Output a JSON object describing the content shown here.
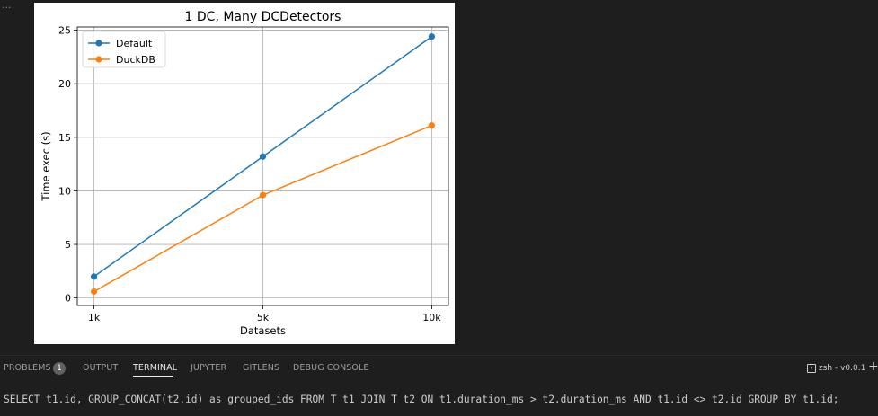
{
  "output": {
    "ellipsis": "..."
  },
  "chart_data": {
    "type": "line",
    "title": "1 DC, Many DCDetectors",
    "xlabel": "Datasets",
    "ylabel": "Time exec (s)",
    "categories": [
      "1k",
      "5k",
      "10k"
    ],
    "ylim": [
      -0.7,
      25.3
    ],
    "yticks": [
      0,
      5,
      10,
      15,
      20,
      25
    ],
    "grid": true,
    "legend_position": "top-left",
    "series": [
      {
        "name": "Default",
        "color": "#1f77b4",
        "values": [
          2.0,
          13.2,
          24.4
        ]
      },
      {
        "name": "DuckDB",
        "color": "#ff7f0e",
        "values": [
          0.6,
          9.6,
          16.1
        ]
      }
    ]
  },
  "panel": {
    "tabs": [
      {
        "label": "PROBLEMS",
        "active": false
      },
      {
        "label": "OUTPUT",
        "active": false
      },
      {
        "label": "TERMINAL",
        "active": true
      },
      {
        "label": "JUPYTER",
        "active": false
      },
      {
        "label": "GITLENS",
        "active": false
      },
      {
        "label": "DEBUG CONSOLE",
        "active": false
      }
    ],
    "problems_count": "1",
    "terminal_name": "zsh - v0.0.1",
    "terminal_icon": "terminal-icon",
    "add_icon": "plus-icon"
  },
  "terminal": {
    "line": "SELECT t1.id, GROUP_CONCAT(t2.id) as grouped_ids FROM T t1 JOIN T t2 ON t1.duration_ms > t2.duration_ms AND t1.id <> t2.id GROUP BY t1.id;"
  },
  "colors": {
    "background": "#1e1e1e",
    "panel_text": "#9d9d9d",
    "panel_active": "#e7e7e7",
    "terminal_text": "#cccccc"
  }
}
